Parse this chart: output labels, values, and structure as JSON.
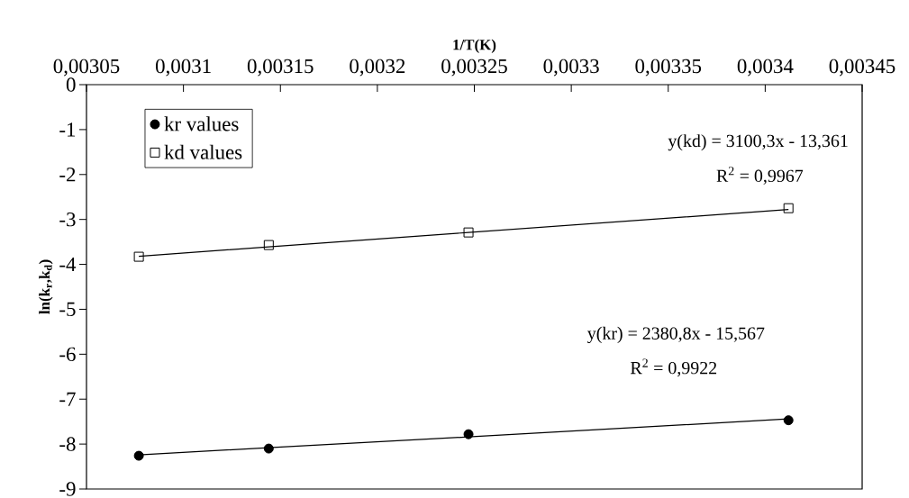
{
  "chart_data": {
    "type": "scatter",
    "xlabel": "1/T(K)",
    "ylabel": "ln(k$_{r}$,k$_{d}$)",
    "xlim": [
      0.00305,
      0.00345
    ],
    "xticks": [
      {
        "value": 0.00305,
        "label": "0,00305"
      },
      {
        "value": 0.0031,
        "label": "0,0031"
      },
      {
        "value": 0.00315,
        "label": "0,00315"
      },
      {
        "value": 0.0032,
        "label": "0,0032"
      },
      {
        "value": 0.00325,
        "label": "0,00325"
      },
      {
        "value": 0.0033,
        "label": "0,0033"
      },
      {
        "value": 0.00335,
        "label": "0,00335"
      },
      {
        "value": 0.0034,
        "label": "0,0034"
      },
      {
        "value": 0.00345,
        "label": "0,00345"
      }
    ],
    "ylim": [
      -9,
      0
    ],
    "yticks": [
      -9,
      -8,
      -7,
      -6,
      -5,
      -4,
      -3,
      -2,
      -1,
      0
    ],
    "x": [
      0.003077,
      0.003144,
      0.003247,
      0.003412
    ],
    "series": [
      {
        "name": "kr values",
        "color": "#000000",
        "marker": "circle",
        "values": [
          -8.26,
          -8.1,
          -7.78,
          -7.47
        ]
      },
      {
        "name": "kd values",
        "color": "#000000",
        "marker": "square",
        "values": [
          -3.83,
          -3.57,
          -3.29,
          -2.75
        ]
      },
      {
        "type": "line",
        "color": "#000000",
        "values": [
          -8.24,
          -8.08,
          -7.84,
          -7.44
        ]
      },
      {
        "type": "line",
        "color": "#000000",
        "values": [
          -3.82,
          -3.61,
          -3.29,
          -2.78
        ]
      }
    ],
    "annotations": [
      "y(kd) = 3100,3x - 13,361",
      "R$^{2}$ = 0,9967",
      "y(kr) = 2380,8x - 15,567",
      "R$^{2}$ = 0,9922"
    ],
    "legend": "top left"
  }
}
